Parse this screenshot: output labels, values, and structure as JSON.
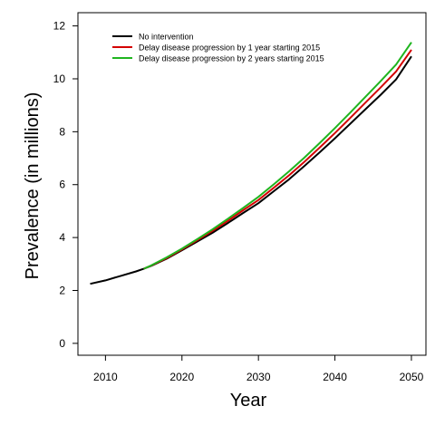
{
  "chart_data": {
    "type": "line",
    "title": "",
    "xlabel": "Year",
    "ylabel": "Prevalence (in millions)",
    "xlim": [
      2006.4,
      2051.9
    ],
    "ylim": [
      -0.45,
      12.5
    ],
    "xticks": [
      2010,
      2020,
      2030,
      2040,
      2050
    ],
    "yticks": [
      0,
      2,
      4,
      6,
      8,
      10,
      12
    ],
    "grid": false,
    "legend_position": "top-left",
    "series": [
      {
        "name": "No intervention",
        "color": "#000000",
        "x": [
          2008,
          2010,
          2012,
          2014,
          2015,
          2016,
          2018,
          2020,
          2022,
          2024,
          2026,
          2028,
          2030,
          2032,
          2034,
          2036,
          2038,
          2040,
          2042,
          2044,
          2046,
          2048,
          2050
        ],
        "y": [
          2.25,
          2.38,
          2.55,
          2.72,
          2.82,
          2.93,
          3.2,
          3.52,
          3.85,
          4.18,
          4.55,
          4.93,
          5.3,
          5.75,
          6.2,
          6.7,
          7.22,
          7.75,
          8.3,
          8.85,
          9.4,
          9.98,
          10.85
        ]
      },
      {
        "name": "Delay disease progression by 1 year starting 2015",
        "color": "#d40000",
        "x": [
          2015,
          2016,
          2018,
          2020,
          2022,
          2024,
          2026,
          2028,
          2030,
          2032,
          2034,
          2036,
          2038,
          2040,
          2042,
          2044,
          2046,
          2048,
          2050
        ],
        "y": [
          2.82,
          2.94,
          3.22,
          3.55,
          3.9,
          4.25,
          4.63,
          5.03,
          5.42,
          5.88,
          6.35,
          6.86,
          7.4,
          7.95,
          8.52,
          9.1,
          9.68,
          10.28,
          11.1
        ]
      },
      {
        "name": "Delay disease progression by 2 years starting 2015",
        "color": "#1fb51f",
        "x": [
          2015,
          2016,
          2018,
          2020,
          2022,
          2024,
          2026,
          2028,
          2030,
          2032,
          2034,
          2036,
          2038,
          2040,
          2042,
          2044,
          2046,
          2048,
          2050
        ],
        "y": [
          2.82,
          2.95,
          3.25,
          3.58,
          3.94,
          4.31,
          4.71,
          5.12,
          5.54,
          6.01,
          6.5,
          7.02,
          7.57,
          8.14,
          8.72,
          9.32,
          9.92,
          10.54,
          11.38
        ]
      }
    ]
  }
}
